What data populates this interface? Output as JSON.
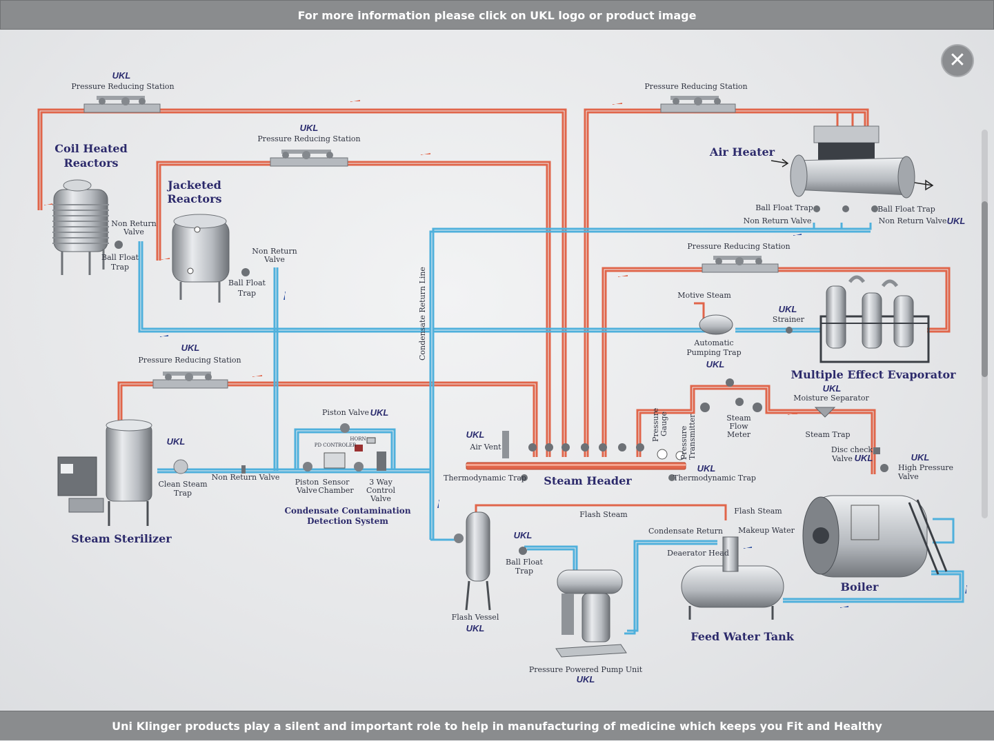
{
  "top_banner": "For more information please click on UKL logo or product image",
  "bottom_banner": "Uni Klinger products play a silent and important role to help in manufacturing of medicine which keeps you Fit and Healthy",
  "close_icon": "close-icon",
  "logo_text": "UKL",
  "colors": {
    "steam": "#e0654a",
    "condensate": "#4fb0dc",
    "title": "#2c2a6b",
    "banner": "#8a8c8e"
  },
  "titles": {
    "coil": "Coil Heated Reactors",
    "jacketed": "Jacketed Reactors",
    "air_heater": "Air Heater",
    "evaporator": "Multiple Effect Evaporator",
    "sterilizer": "Steam Sterilizer",
    "ccds": "Condensate Contamination Detection System",
    "steam_header": "Steam Header",
    "boiler": "Boiler",
    "feed_water_tank": "Feed Water Tank"
  },
  "labels": {
    "prs_1": "Pressure Reducing Station",
    "prs_2": "Pressure Reducing Station",
    "prs_3": "Pressure Reducing Station",
    "prs_4": "Pressure Reducing Station",
    "prs_5": "Pressure Reducing Station",
    "nrv_coil": "Non Return Valve",
    "bft_coil": "Ball Float Trap",
    "nrv_jacket": "Non Return Valve",
    "bft_jacket": "Ball Float Trap",
    "bft_air_left": "Ball Float Trap",
    "bft_air_right": "Ball Float Trap",
    "nrv_air_left": "Non Return Valve",
    "nrv_air_right": "Non Return Valve",
    "motive_steam": "Motive Steam",
    "strainer": "Strainer",
    "apt": "Automatic Pumping Trap",
    "moisture_separator": "Moisture Separator",
    "steam_trap": "Steam Trap",
    "steam_flow_meter": "Steam Flow Meter",
    "pressure_gauge": "Pressure Gauge",
    "pressure_transmitter": "Pressure Transmitter",
    "disc_check_valve": "Disc check Valve",
    "hp_valve": "High Pressure Valve",
    "air_vent": "Air Vent",
    "thermo_trap_left": "Thermodynamic Trap",
    "thermo_trap_right": "Thermodynamic Trap",
    "condensate_return_line": "Condensate Return Line",
    "piston_valve_top": "Piston Valve",
    "horn": "HORN",
    "pd_controller": "PD CONTROLER",
    "piston_valve": "Piston Valve",
    "sensor_chamber": "Sensor Chamber",
    "three_way": "3 Way Control Valve",
    "clean_steam_trap": "Clean Steam Trap",
    "nrv_sterilizer": "Non Return Valve",
    "flash_steam_1": "Flash Steam",
    "flash_steam_2": "Flash Steam",
    "condensate_return": "Condensate Return",
    "makeup_water": "Makeup Water",
    "deaerator_head": "Deaerator Head",
    "bft_flash": "Ball Float Trap",
    "flash_vessel": "Flash Vessel",
    "pppu": "Pressure Powered Pump Unit"
  }
}
